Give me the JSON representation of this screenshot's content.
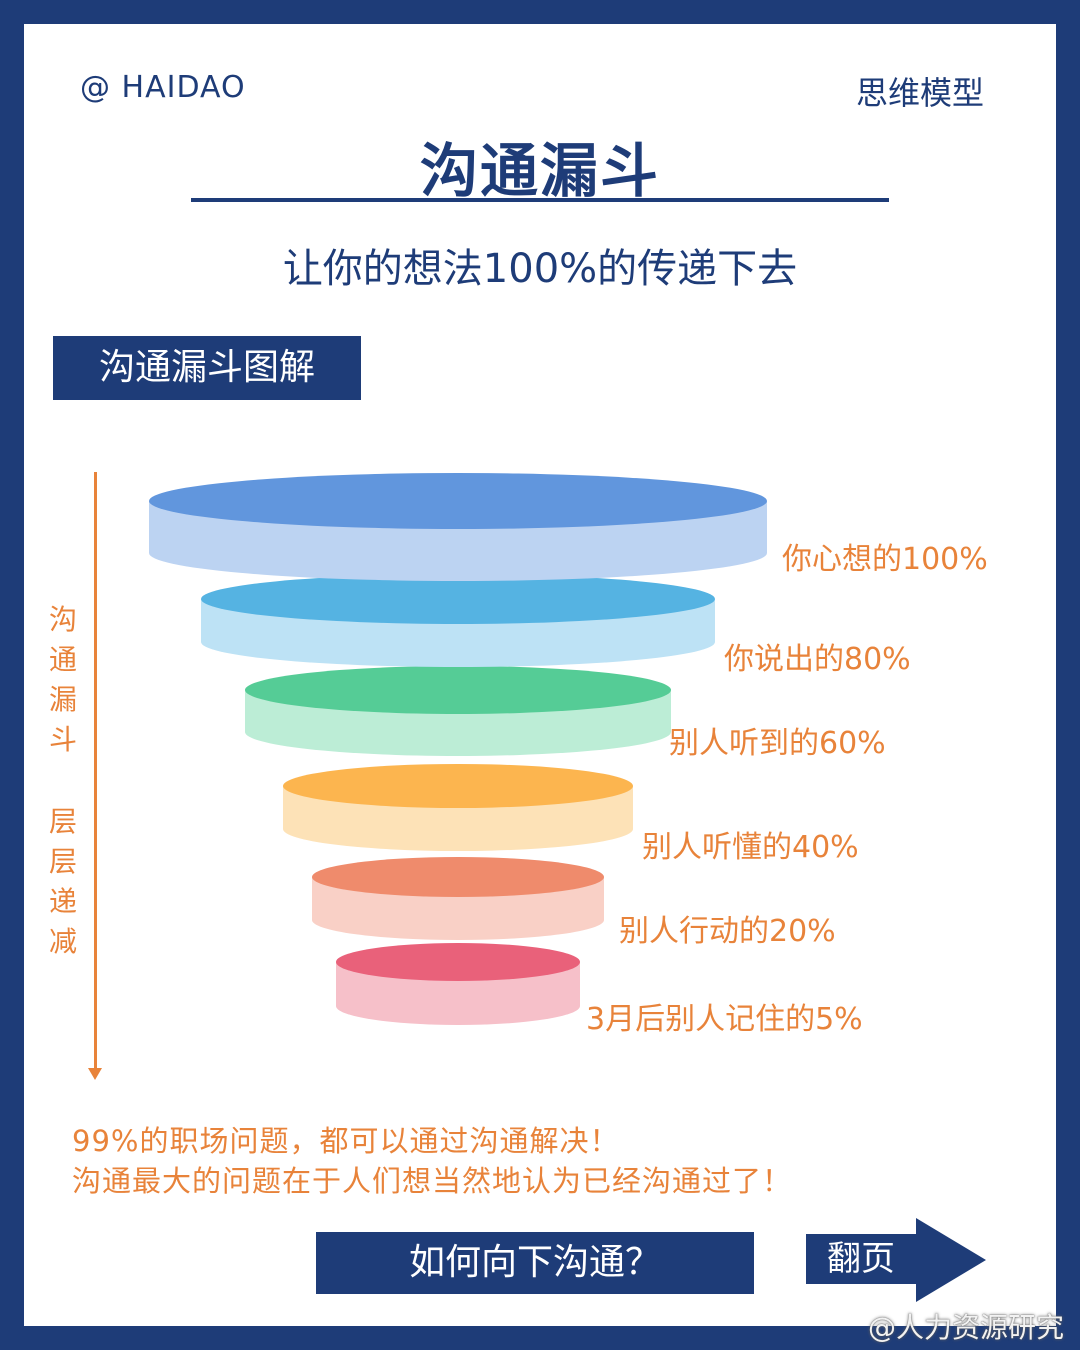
{
  "header": {
    "brand": "@ HAIDAO",
    "category": "思维模型",
    "title": "沟通漏斗",
    "subtitle": "让你的想法100%的传递下去"
  },
  "section_label": "沟通漏斗图解",
  "side_text": {
    "line1": "沟通漏斗",
    "line2": "层层递减"
  },
  "funnel": {
    "layers": [
      {
        "label": "你心想的100%",
        "percent": 100,
        "top_color": "#6196dd",
        "side_color": "#bcd3f2"
      },
      {
        "label": "你说出的80%",
        "percent": 80,
        "top_color": "#55b3e2",
        "side_color": "#bde2f5"
      },
      {
        "label": "别人听到的60%",
        "percent": 60,
        "top_color": "#55cc96",
        "side_color": "#bcedd6"
      },
      {
        "label": "别人听懂的40%",
        "percent": 40,
        "top_color": "#fcb54f",
        "side_color": "#fde2b7"
      },
      {
        "label": "别人行动的20%",
        "percent": 20,
        "top_color": "#ef8b6c",
        "side_color": "#f9d0c6"
      },
      {
        "label": "3月后别人记住的5%",
        "percent": 5,
        "top_color": "#e9617a",
        "side_color": "#f6c0c9"
      }
    ]
  },
  "notes": {
    "line1": "99%的职场问题，都可以通过沟通解决！",
    "line2": "沟通最大的问题在于人们想当然地认为已经沟通过了！"
  },
  "footer": {
    "cta_label": "如何向下沟通？",
    "next_label": "翻页",
    "watermark": "@人力资源研究"
  },
  "colors": {
    "navy": "#1e3c78",
    "orange": "#e8833a"
  }
}
